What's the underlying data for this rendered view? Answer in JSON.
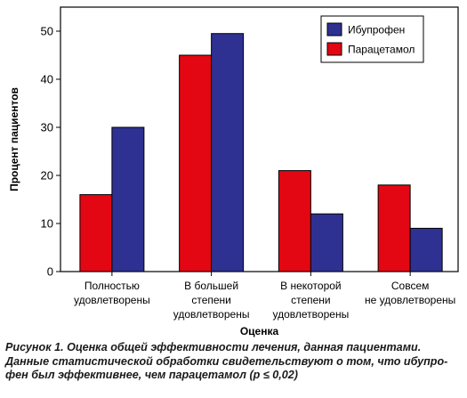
{
  "chart_data": {
    "type": "bar",
    "ylabel": "Процент пациентов",
    "xlabel": "Оценка",
    "ylim": [
      0,
      55
    ],
    "yticks": [
      0,
      10,
      20,
      30,
      40,
      50
    ],
    "grid": false,
    "legend_position": "top-right",
    "categories": [
      [
        "Полностью",
        "удовлетворены"
      ],
      [
        "В большей",
        "степени",
        "удовлетворены"
      ],
      [
        "В некоторой",
        "степени",
        "удовлетворены"
      ],
      [
        "Совсем",
        "не удовлетворены"
      ]
    ],
    "series": [
      {
        "name": "Парацетамол",
        "color": "#e30613",
        "values": [
          16,
          45,
          21,
          18
        ]
      },
      {
        "name": "Ибупрофен",
        "color": "#2e3192",
        "values": [
          30,
          49.5,
          12,
          9
        ]
      }
    ],
    "legend_order": [
      1,
      0
    ]
  },
  "caption": {
    "lines": [
      "Рисунок 1. Оценка общей эффективности лечения, данная пациентами.",
      "Данные статистической обработки свидетельствуют о том, что ибупро-",
      "фен был эффективнее, чем парацетамол (p ≤ 0,02)"
    ]
  }
}
